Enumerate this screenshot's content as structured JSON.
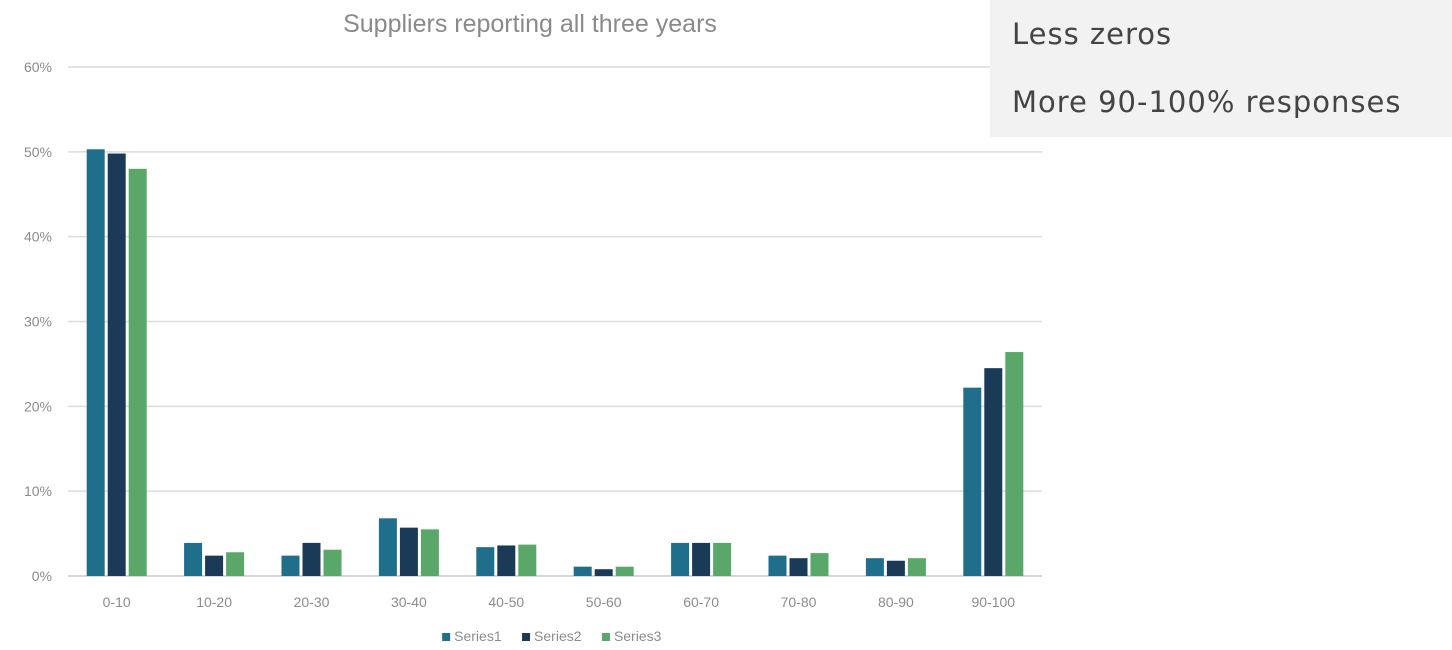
{
  "callout": {
    "lines": [
      "Less zeros",
      "More 90-100% responses"
    ]
  },
  "chart_data": {
    "type": "bar",
    "title": "Suppliers reporting all three years",
    "xlabel": "",
    "ylabel": "",
    "categories": [
      "0-10",
      "10-20",
      "20-30",
      "30-40",
      "40-50",
      "50-60",
      "60-70",
      "70-80",
      "80-90",
      "90-100"
    ],
    "series": [
      {
        "name": "Series1",
        "color": "#1f6e8c",
        "values": [
          50.3,
          3.9,
          2.4,
          6.8,
          3.4,
          1.1,
          3.9,
          2.4,
          2.1,
          22.2
        ]
      },
      {
        "name": "Series2",
        "color": "#1b3a57",
        "values": [
          49.8,
          2.4,
          3.9,
          5.7,
          3.6,
          0.8,
          3.9,
          2.1,
          1.8,
          24.5
        ]
      },
      {
        "name": "Series3",
        "color": "#5aa869",
        "values": [
          48.0,
          2.8,
          3.1,
          5.5,
          3.7,
          1.1,
          3.9,
          2.7,
          2.1,
          26.4
        ]
      }
    ],
    "ylim": [
      0,
      60
    ],
    "yticks": [
      0,
      10,
      20,
      30,
      40,
      50,
      60
    ],
    "ytick_labels": [
      "0%",
      "10%",
      "20%",
      "30%",
      "40%",
      "50%",
      "60%"
    ],
    "grid": true,
    "legend": "bottom"
  }
}
